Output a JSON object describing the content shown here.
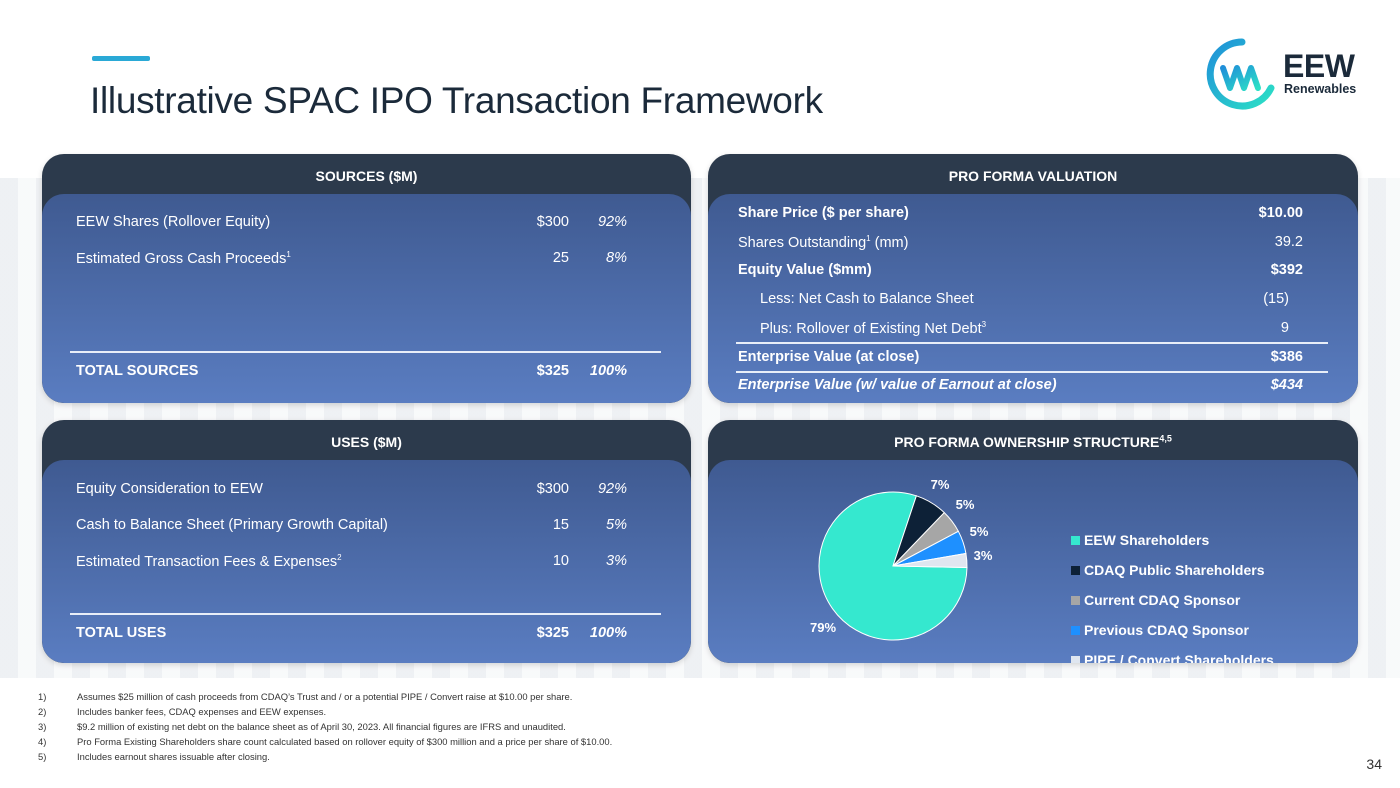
{
  "title": "Illustrative SPAC IPO Transaction Framework",
  "logo": {
    "name": "EEW",
    "sub": "Renewables"
  },
  "colors": {
    "accent": "#2aa9d6",
    "panel_header": "#2c3a4c",
    "panel_body_top": "#3f5a91",
    "panel_body_bottom": "#5a7dc1"
  },
  "sources": {
    "header": "SOURCES ($M)",
    "rows": [
      {
        "label": "EEW Shares (Rollover Equity)",
        "sup": "",
        "amount": "$300",
        "pct": "92%"
      },
      {
        "label": "Estimated Gross Cash Proceeds",
        "sup": "1",
        "amount": "25",
        "pct": "8%"
      }
    ],
    "total": {
      "label": "TOTAL SOURCES",
      "amount": "$325",
      "pct": "100%"
    }
  },
  "uses": {
    "header": "USES ($M)",
    "rows": [
      {
        "label": "Equity Consideration to EEW",
        "sup": "",
        "amount": "$300",
        "pct": "92%"
      },
      {
        "label": "Cash to Balance Sheet (Primary Growth Capital)",
        "sup": "",
        "amount": "15",
        "pct": "5%"
      },
      {
        "label": "Estimated Transaction Fees & Expenses",
        "sup": "2",
        "amount": "10",
        "pct": "3%"
      }
    ],
    "total": {
      "label": "TOTAL USES",
      "amount": "$325",
      "pct": "100%"
    }
  },
  "valuation": {
    "header": "PRO FORMA VALUATION",
    "rows": [
      {
        "label": "Share Price ($ per share)",
        "sup": "",
        "value": "$10.00"
      },
      {
        "label": "Shares Outstanding",
        "sup": "1",
        "label_suffix": " (mm)",
        "value": "39.2"
      },
      {
        "label": "Equity Value ($mm)",
        "sup": "",
        "value": "$392"
      },
      {
        "label": "Less: Net Cash to Balance Sheet",
        "sup": "",
        "value": "(15)"
      },
      {
        "label": "Plus: Rollover of Existing Net Debt",
        "sup": "3",
        "value": "9"
      },
      {
        "label": "Enterprise Value (at close)",
        "sup": "",
        "value": "$386"
      },
      {
        "label": "Enterprise Value (w/ value of Earnout at close)",
        "sup": "",
        "value": "$434"
      }
    ]
  },
  "ownership": {
    "header": "PRO FORMA OWNERSHIP STRUCTURE",
    "header_sup": "4,5"
  },
  "chart_data": {
    "type": "pie",
    "categories": [
      "EEW Shareholders",
      "CDAQ Public Shareholders",
      "Current CDAQ Sponsor",
      "Previous CDAQ Sponsor",
      "PIPE / Convert Shareholders"
    ],
    "values": [
      79,
      7,
      5,
      5,
      3
    ],
    "labels": [
      "79%",
      "7%",
      "5%",
      "5%",
      "3%"
    ],
    "colors": [
      "#35e8cf",
      "#0d2137",
      "#a6a6a6",
      "#1e90ff",
      "#dfe6f0"
    ],
    "legend": "right"
  },
  "footnotes": [
    {
      "num": "1)",
      "text": "Assumes $25 million of cash proceeds from CDAQ’s Trust and / or a potential PIPE / Convert raise at $10.00 per share."
    },
    {
      "num": "2)",
      "text": "Includes banker fees, CDAQ expenses and EEW expenses."
    },
    {
      "num": "3)",
      "text": "$9.2 million of existing net debt on the balance sheet as of April 30, 2023. All financial figures are IFRS and unaudited."
    },
    {
      "num": "4)",
      "text": "Pro Forma Existing Shareholders share count calculated based on rollover equity of $300 million and a price per share of $10.00."
    },
    {
      "num": "5)",
      "text": "Includes earnout shares issuable after closing."
    }
  ],
  "page_number": "34"
}
